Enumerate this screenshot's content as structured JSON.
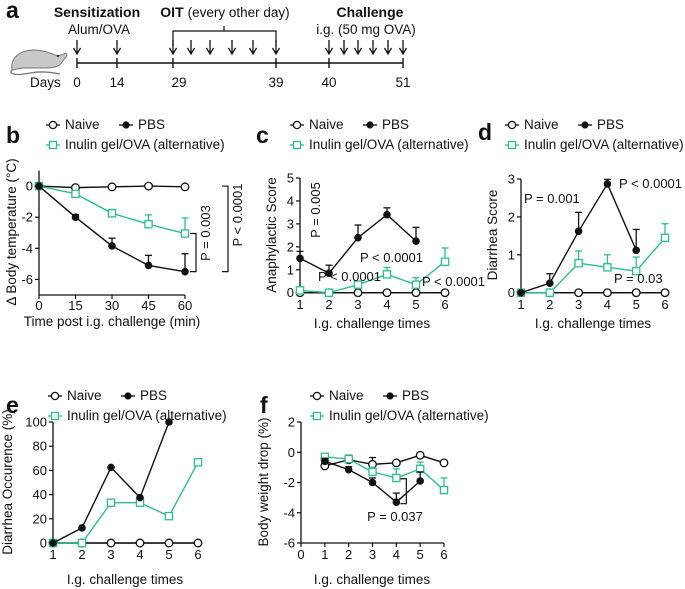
{
  "colors": {
    "naive": "#111111",
    "pbs": "#111111",
    "inulin": "#2bbf8e",
    "mouse": "#c8c8c8"
  },
  "legend": {
    "naive": "Naive",
    "pbs": "PBS",
    "inulin": "Inulin gel/OVA (alternative)"
  },
  "panel_a": {
    "letter": "a",
    "sensitization_title": "Sensitization",
    "sensitization_sub": "Alum/OVA",
    "oit_title": "OIT",
    "oit_sub": "(every other day)",
    "challenge_title": "Challenge",
    "challenge_sub": "i.g. (50 mg OVA)",
    "days_label": "Days",
    "days": [
      "0",
      "14",
      "29",
      "39",
      "40",
      "51"
    ],
    "mouse_icon": "mouse-icon"
  },
  "chart_data": [
    {
      "id": "b",
      "letter": "b",
      "type": "line",
      "xlabel": "Time post i.g. challenge (min)",
      "ylabel": "Δ Body temperature (°C)",
      "xlim": [
        0,
        60
      ],
      "ylim": [
        -7,
        1
      ],
      "xticks": [
        0,
        15,
        30,
        45,
        60
      ],
      "yticks": [
        0,
        -2,
        -4,
        -6
      ],
      "x": [
        0,
        15,
        30,
        45,
        60
      ],
      "series": [
        {
          "name": "Naive",
          "key": "naive",
          "values": [
            0,
            -0.1,
            -0.05,
            0,
            -0.05
          ],
          "error": [
            0,
            0,
            0,
            0,
            0
          ]
        },
        {
          "name": "Inulin gel/OVA (alternative)",
          "key": "inulin",
          "values": [
            0,
            -0.5,
            -1.75,
            -2.45,
            -3.05
          ],
          "error": [
            0,
            0.1,
            0.25,
            0.6,
            1.0
          ]
        },
        {
          "name": "PBS",
          "key": "pbs",
          "values": [
            0,
            -2.0,
            -3.85,
            -5.1,
            -5.5
          ],
          "error": [
            0,
            0.15,
            0.5,
            0.65,
            1.15
          ]
        }
      ],
      "annotations": [
        "P = 0.003",
        "P < 0.0001"
      ]
    },
    {
      "id": "c",
      "letter": "c",
      "type": "line",
      "xlabel": "I.g. challenge times",
      "ylabel": "Anaphylactic Score",
      "xlim": [
        1,
        6
      ],
      "ylim": [
        0,
        5
      ],
      "xticks": [
        1,
        2,
        3,
        4,
        5,
        6
      ],
      "yticks": [
        0,
        1,
        2,
        3,
        4,
        5
      ],
      "x": [
        1,
        2,
        3,
        4,
        5,
        6
      ],
      "series": [
        {
          "name": "Naive",
          "key": "naive",
          "values": [
            0,
            0,
            0,
            0,
            0,
            0
          ],
          "error": [
            0,
            0,
            0,
            0,
            0,
            0
          ]
        },
        {
          "name": "Inulin gel/OVA (alternative)",
          "key": "inulin",
          "values": [
            0.1,
            0,
            0.35,
            0.8,
            0.35,
            1.35
          ],
          "error": [
            0,
            0,
            0.1,
            0.3,
            0.3,
            0.6
          ]
        },
        {
          "name": "PBS",
          "key": "pbs",
          "values": [
            1.5,
            0.85,
            2.4,
            3.4,
            2.25,
            null
          ],
          "error": [
            0.3,
            0.35,
            0.55,
            0.3,
            0.6,
            null
          ]
        }
      ],
      "annotations": [
        "P = 0.005",
        "P < 0.0001",
        "P < 0.0001",
        "P < 0.0001"
      ]
    },
    {
      "id": "d",
      "letter": "d",
      "type": "line",
      "xlabel": "I.g. challenge times",
      "ylabel": "Diarrhea Score",
      "xlim": [
        1,
        6
      ],
      "ylim": [
        0,
        3
      ],
      "xticks": [
        1,
        2,
        3,
        4,
        5,
        6
      ],
      "yticks": [
        0,
        1,
        2,
        3
      ],
      "x": [
        1,
        2,
        3,
        4,
        5,
        6
      ],
      "series": [
        {
          "name": "Naive",
          "key": "naive",
          "values": [
            0,
            0,
            0,
            0,
            0,
            0
          ],
          "error": [
            0,
            0,
            0,
            0,
            0,
            0
          ]
        },
        {
          "name": "Inulin gel/OVA (alternative)",
          "key": "inulin",
          "values": [
            0,
            0,
            0.78,
            0.67,
            0.57,
            1.45
          ],
          "error": [
            0,
            0,
            0.32,
            0.33,
            0.37,
            0.37
          ]
        },
        {
          "name": "PBS",
          "key": "pbs",
          "values": [
            0,
            0.25,
            1.62,
            2.87,
            1.12,
            null
          ],
          "error": [
            0,
            0.25,
            0.5,
            0.12,
            0.55,
            null
          ]
        }
      ],
      "annotations": [
        "P = 0.001",
        "P < 0.0001",
        "P = 0.03"
      ]
    },
    {
      "id": "e",
      "letter": "e",
      "type": "line",
      "xlabel": "I.g. challenge times",
      "ylabel": "Diarrhea Occurence (%)",
      "xlim": [
        1,
        6
      ],
      "ylim": [
        0,
        100
      ],
      "xticks": [
        1,
        2,
        3,
        4,
        5,
        6
      ],
      "yticks": [
        0,
        20,
        40,
        60,
        80,
        100
      ],
      "x": [
        1,
        2,
        3,
        4,
        5,
        6
      ],
      "series": [
        {
          "name": "Naive",
          "key": "naive",
          "values": [
            0,
            0,
            0,
            0,
            0,
            0
          ]
        },
        {
          "name": "Inulin gel/OVA (alternative)",
          "key": "inulin",
          "values": [
            0,
            0,
            33.3,
            33.3,
            22.2,
            66.7
          ]
        },
        {
          "name": "PBS",
          "key": "pbs",
          "values": [
            0,
            12.5,
            62.5,
            37.5,
            100,
            null
          ]
        }
      ],
      "annotations": []
    },
    {
      "id": "f",
      "letter": "f",
      "type": "line",
      "xlabel": "I.g. challenge times",
      "ylabel": "Body weight drop (%)",
      "xlim": [
        0,
        6
      ],
      "ylim": [
        -6,
        2
      ],
      "xticks": [
        0,
        1,
        2,
        3,
        4,
        5,
        6
      ],
      "yticks": [
        2,
        0,
        -2,
        -4,
        -6
      ],
      "x": [
        1,
        2,
        3,
        4,
        5,
        6
      ],
      "series": [
        {
          "name": "Naive",
          "key": "naive",
          "values": [
            -0.9,
            -0.5,
            -0.8,
            -0.7,
            -0.2,
            -0.7
          ],
          "error": [
            0.2,
            0.3,
            0.45,
            0.1,
            0.1,
            0.1
          ]
        },
        {
          "name": "Inulin gel/OVA (alternative)",
          "key": "inulin",
          "values": [
            -0.3,
            -0.45,
            -1.3,
            -1.7,
            -1.1,
            -2.5
          ],
          "error": [
            0.15,
            0.2,
            0.3,
            0.6,
            0.45,
            0.8
          ]
        },
        {
          "name": "PBS",
          "key": "pbs",
          "values": [
            -0.6,
            -1.15,
            -2.0,
            -3.3,
            -1.9,
            null
          ],
          "error": [
            0.2,
            0.2,
            0.3,
            0.6,
            0.6,
            null
          ]
        }
      ],
      "annotations": [
        "P = 0.037"
      ]
    }
  ]
}
